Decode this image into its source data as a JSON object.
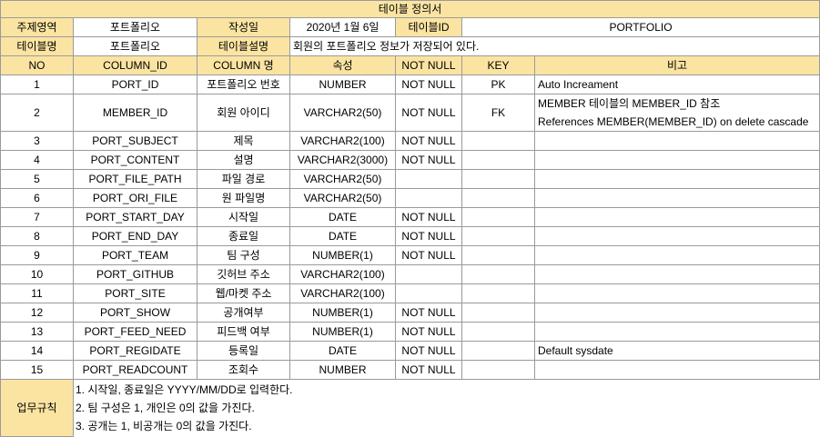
{
  "title": "테이블 정의서",
  "meta": {
    "subject_label": "주제영역",
    "subject_value": "포트폴리오",
    "date_label": "작성일",
    "date_value": "2020년 1월 6일",
    "table_id_label": "테이블ID",
    "table_id_value": "PORTFOLIO",
    "table_name_label": "테이블명",
    "table_name_value": "포트폴리오",
    "table_desc_label": "테이블설명",
    "table_desc_value": "회원의 포트폴리오 정보가 저장되어 있다."
  },
  "columns_header": [
    "NO",
    "COLUMN_ID",
    "COLUMN 명",
    "속성",
    "NOT NULL",
    "KEY",
    "비고"
  ],
  "rows": [
    {
      "no": "1",
      "column_id": "PORT_ID",
      "name": "포트폴리오 번호",
      "type": "NUMBER",
      "not_null": "NOT NULL",
      "key": "PK",
      "note": "Auto Increament"
    },
    {
      "no": "2",
      "column_id": "MEMBER_ID",
      "name": "회원 아이디",
      "type": "VARCHAR2(50)",
      "not_null": "NOT NULL",
      "key": "FK",
      "note": "MEMBER 테이블의 MEMBER_ID 참조",
      "note2": "References MEMBER(MEMBER_ID) on delete cascade"
    },
    {
      "no": "3",
      "column_id": "PORT_SUBJECT",
      "name": "제목",
      "type": "VARCHAR2(100)",
      "not_null": "NOT NULL",
      "key": "",
      "note": ""
    },
    {
      "no": "4",
      "column_id": "PORT_CONTENT",
      "name": "설명",
      "type": "VARCHAR2(3000)",
      "not_null": "NOT NULL",
      "key": "",
      "note": ""
    },
    {
      "no": "5",
      "column_id": "PORT_FILE_PATH",
      "name": "파일 경로",
      "type": "VARCHAR2(50)",
      "not_null": "",
      "key": "",
      "note": ""
    },
    {
      "no": "6",
      "column_id": "PORT_ORI_FILE",
      "name": "원 파일명",
      "type": "VARCHAR2(50)",
      "not_null": "",
      "key": "",
      "note": ""
    },
    {
      "no": "7",
      "column_id": "PORT_START_DAY",
      "name": "시작일",
      "type": "DATE",
      "not_null": "NOT NULL",
      "key": "",
      "note": ""
    },
    {
      "no": "8",
      "column_id": "PORT_END_DAY",
      "name": "종료일",
      "type": "DATE",
      "not_null": "NOT NULL",
      "key": "",
      "note": ""
    },
    {
      "no": "9",
      "column_id": "PORT_TEAM",
      "name": "팀 구성",
      "type": "NUMBER(1)",
      "not_null": "NOT NULL",
      "key": "",
      "note": ""
    },
    {
      "no": "10",
      "column_id": "PORT_GITHUB",
      "name": "깃허브 주소",
      "type": "VARCHAR2(100)",
      "not_null": "",
      "key": "",
      "note": ""
    },
    {
      "no": "11",
      "column_id": "PORT_SITE",
      "name": "웹/마켓 주소",
      "type": "VARCHAR2(100)",
      "not_null": "",
      "key": "",
      "note": ""
    },
    {
      "no": "12",
      "column_id": "PORT_SHOW",
      "name": "공개여부",
      "type": "NUMBER(1)",
      "not_null": "NOT NULL",
      "key": "",
      "note": ""
    },
    {
      "no": "13",
      "column_id": "PORT_FEED_NEED",
      "name": "피드백 여부",
      "type": "NUMBER(1)",
      "not_null": "NOT NULL",
      "key": "",
      "note": ""
    },
    {
      "no": "14",
      "column_id": "PORT_REGIDATE",
      "name": "등록일",
      "type": "DATE",
      "not_null": "NOT NULL",
      "key": "",
      "note": "Default sysdate"
    },
    {
      "no": "15",
      "column_id": "PORT_READCOUNT",
      "name": "조회수",
      "type": "NUMBER",
      "not_null": "NOT NULL",
      "key": "",
      "note": ""
    }
  ],
  "business_rules": {
    "label": "업무규칙",
    "items": [
      "1. 시작일, 종료일은 YYYY/MM/DD로 입력한다.",
      "2. 팀 구성은 1, 개인은 0의 값을 가진다.",
      "3. 공개는 1, 비공개는 0의 값을 가진다."
    ]
  }
}
